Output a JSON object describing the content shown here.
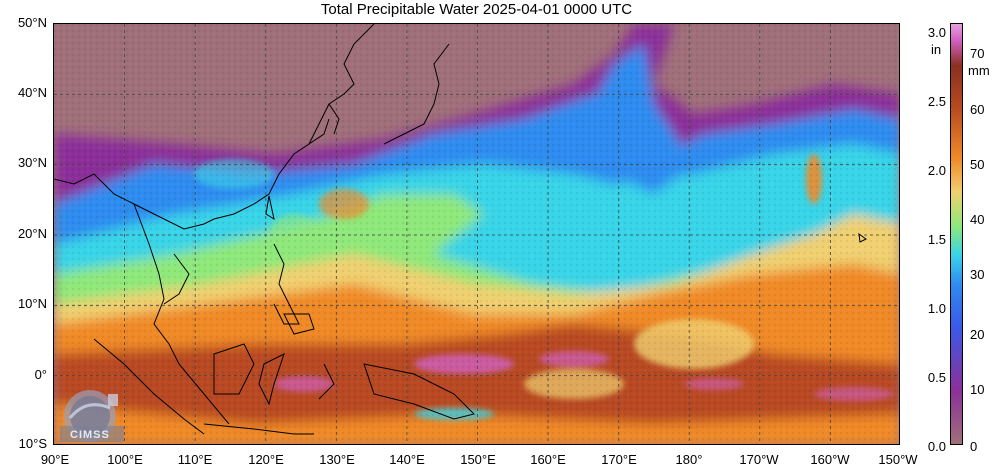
{
  "title": "Total Precipitable Water  2025-04-01 0000 UTC",
  "map": {
    "lat_labels": [
      "50°N",
      "40°N",
      "30°N",
      "20°N",
      "10°N",
      "0°",
      "10°S"
    ],
    "lon_labels": [
      "90°E",
      "100°E",
      "110°E",
      "120°E",
      "130°E",
      "140°E",
      "150°E",
      "160°E",
      "170°E",
      "180°",
      "170°W",
      "160°W",
      "150°W"
    ],
    "extent": {
      "lon_min_east": 90,
      "lon_max_east": 210,
      "lat_min": -10,
      "lat_max": 50
    },
    "gridlines": "dashed",
    "colors": {
      "dry": "#a0707a",
      "low": "#8b2f9a",
      "moderate_low": "#2f8cf0",
      "moderate": "#39d4e8",
      "mid": "#8fe87a",
      "mid_high": "#f0d070",
      "high": "#f08a28",
      "very_high": "#b84a20",
      "extreme": "#d060c0"
    }
  },
  "colorbar": {
    "inch_labels": [
      "3.0",
      "2.5",
      "2.0",
      "1.5",
      "1.0",
      "0.5",
      "0.0"
    ],
    "mm_labels": [
      "70",
      "60",
      "50",
      "40",
      "30",
      "20",
      "10",
      "0"
    ],
    "unit_in": "in",
    "unit_mm": "mm",
    "range_mm": [
      0,
      76
    ]
  },
  "logo": {
    "text": "CIMSS"
  }
}
